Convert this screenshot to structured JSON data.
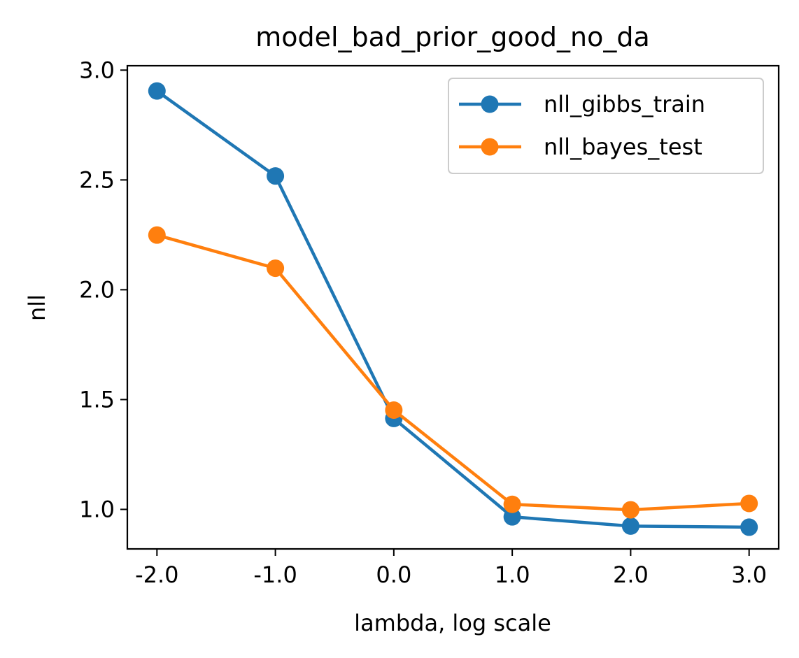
{
  "chart_data": {
    "type": "line",
    "title": "model_bad_prior_good_no_da",
    "xlabel": "lambda, log scale",
    "ylabel": "nll",
    "x": [
      -2.0,
      -1.0,
      0.0,
      1.0,
      2.0,
      3.0
    ],
    "x_tick_labels": [
      "-2.0",
      "-1.0",
      "0.0",
      "1.0",
      "2.0",
      "3.0"
    ],
    "y_ticks": [
      1.0,
      1.5,
      2.0,
      2.5,
      3.0
    ],
    "y_tick_labels": [
      "1.0",
      "1.5",
      "2.0",
      "2.5",
      "3.0"
    ],
    "xlim": [
      -2.25,
      3.25
    ],
    "ylim": [
      0.82,
      3.02
    ],
    "grid": false,
    "legend_position": "top-right",
    "series": [
      {
        "name": "nll_gibbs_train",
        "color": "#1f77b4",
        "marker": "circle",
        "values": [
          2.905,
          2.518,
          1.414,
          0.966,
          0.924,
          0.919
        ]
      },
      {
        "name": "nll_bayes_test",
        "color": "#ff7f0e",
        "marker": "circle",
        "values": [
          2.249,
          2.098,
          1.452,
          1.023,
          0.998,
          1.027
        ]
      }
    ]
  }
}
